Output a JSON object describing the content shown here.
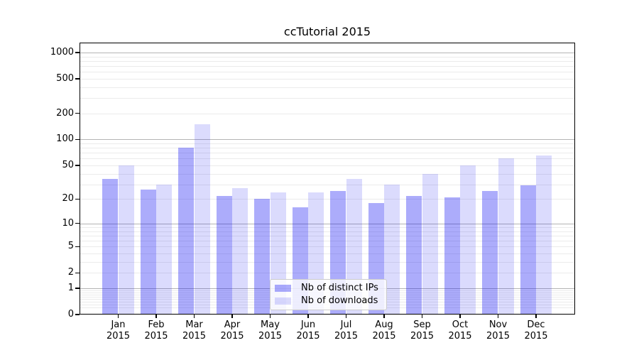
{
  "chart_data": {
    "type": "bar",
    "title": "ccTutorial 2015",
    "categories": [
      {
        "label": "Jan",
        "sublabel": "2015"
      },
      {
        "label": "Feb",
        "sublabel": "2015"
      },
      {
        "label": "Mar",
        "sublabel": "2015"
      },
      {
        "label": "Apr",
        "sublabel": "2015"
      },
      {
        "label": "May",
        "sublabel": "2015"
      },
      {
        "label": "Jun",
        "sublabel": "2015"
      },
      {
        "label": "Jul",
        "sublabel": "2015"
      },
      {
        "label": "Aug",
        "sublabel": "2015"
      },
      {
        "label": "Sep",
        "sublabel": "2015"
      },
      {
        "label": "Oct",
        "sublabel": "2015"
      },
      {
        "label": "Nov",
        "sublabel": "2015"
      },
      {
        "label": "Dec",
        "sublabel": "2015"
      }
    ],
    "series": [
      {
        "name": "Nb of distinct IPs",
        "color": "rgba(13,13,242,0.34)",
        "values": [
          35,
          26,
          80,
          22,
          20,
          16,
          25,
          18,
          22,
          21,
          25,
          29
        ]
      },
      {
        "name": "Nb of downloads",
        "color": "rgba(13,13,242,0.15)",
        "values": [
          50,
          30,
          150,
          27,
          24,
          24,
          35,
          30,
          40,
          50,
          60,
          65
        ]
      }
    ],
    "xlabel": "",
    "ylabel": "",
    "y_axis": {
      "scale": "log1p",
      "ticks": [
        0,
        1,
        2,
        5,
        10,
        20,
        50,
        100,
        200,
        500,
        1000
      ],
      "major_gridline_values": [
        1,
        10,
        100,
        1000
      ],
      "ylim": [
        0,
        1000
      ]
    },
    "grid": true,
    "legend": {
      "position": "lower center"
    }
  },
  "colors": {
    "major_grid": "#b4b4b4",
    "minor_grid": "#ebebeb",
    "spine": "#000000",
    "legend_border": "#cccccc",
    "legend_bg": "rgba(255,255,255,0.8)"
  }
}
